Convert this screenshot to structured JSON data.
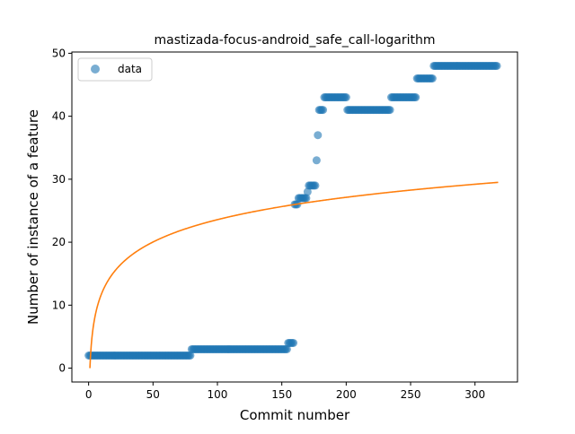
{
  "chart_data": {
    "type": "scatter",
    "title": "mastizada-focus-android_safe_call-logarithm",
    "xlabel": "Commit number",
    "ylabel": "Number of instance of a feature",
    "xlim": [
      -13,
      333
    ],
    "ylim": [
      -2.2,
      50.2
    ],
    "xticks": [
      0,
      50,
      100,
      150,
      200,
      250,
      300
    ],
    "yticks": [
      0,
      10,
      20,
      30,
      40,
      50
    ],
    "legend": {
      "position": "top-left",
      "entries": [
        "data"
      ]
    },
    "colors": {
      "data": "#1f77b4",
      "fit": "#ff7f0e"
    },
    "series": [
      {
        "name": "data",
        "kind": "scatter",
        "segments": [
          {
            "x_start": 0,
            "x_end": 79,
            "y": 2
          },
          {
            "x_start": 80,
            "x_end": 154,
            "y": 3
          },
          {
            "x_start": 155,
            "x_end": 159,
            "y": 4
          },
          {
            "x_start": 160,
            "x_end": 162,
            "y": 26
          },
          {
            "x_start": 163,
            "x_end": 169,
            "y": 27
          },
          {
            "x_start": 170,
            "x_end": 170,
            "y": 28
          },
          {
            "x_start": 171,
            "x_end": 176,
            "y": 29
          },
          {
            "x_start": 177,
            "x_end": 177,
            "y": 33
          },
          {
            "x_start": 178,
            "x_end": 178,
            "y": 37
          },
          {
            "x_start": 179,
            "x_end": 182,
            "y": 41
          },
          {
            "x_start": 183,
            "x_end": 200,
            "y": 43
          },
          {
            "x_start": 201,
            "x_end": 234,
            "y": 41
          },
          {
            "x_start": 235,
            "x_end": 254,
            "y": 43
          },
          {
            "x_start": 255,
            "x_end": 267,
            "y": 46
          },
          {
            "x_start": 268,
            "x_end": 317,
            "y": 48
          }
        ]
      },
      {
        "name": "fit",
        "kind": "line",
        "model": "logarithm",
        "a": 5.12,
        "b": 0,
        "x_range": [
          1,
          318
        ]
      }
    ]
  }
}
